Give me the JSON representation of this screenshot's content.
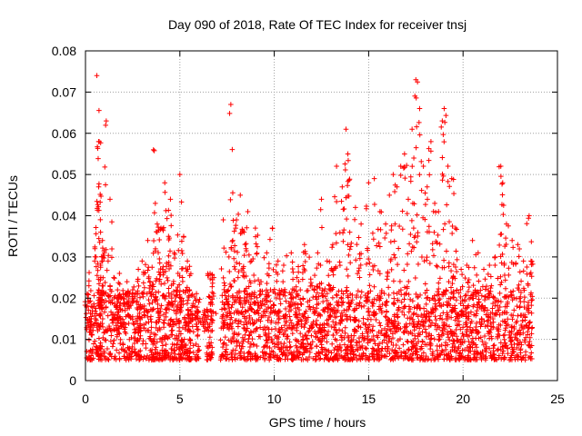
{
  "chart_data": {
    "type": "scatter",
    "title": "Day 090 of 2018, Rate Of TEC Index for receiver tnsj",
    "xlabel": "GPS time / hours",
    "ylabel": "ROTI / TECUs",
    "xlim": [
      0,
      25
    ],
    "ylim": [
      0,
      0.08
    ],
    "xticks": [
      0,
      5,
      10,
      15,
      20,
      25
    ],
    "xtick_labels": [
      "0",
      "5",
      "10",
      "15",
      "20",
      "25"
    ],
    "yticks": [
      0,
      0.01,
      0.02,
      0.03,
      0.04,
      0.05,
      0.06,
      0.07,
      0.08
    ],
    "ytick_labels": [
      "0",
      "0.01",
      "0.02",
      "0.03",
      "0.04",
      "0.05",
      "0.06",
      "0.07",
      "0.08"
    ],
    "grid": true,
    "marker": "+",
    "color": "#ff0000",
    "series": [
      {
        "name": "ROTI",
        "x": [
          0.1,
          0.3,
          0.5,
          0.6,
          0.7,
          0.7,
          0.8,
          0.8,
          0.9,
          1.0,
          1.1,
          1.2,
          1.3,
          1.5,
          1.7,
          1.8,
          2.0,
          2.2,
          2.5,
          2.8,
          3.0,
          3.3,
          3.6,
          3.7,
          3.8,
          4.0,
          4.2,
          4.4,
          4.5,
          4.7,
          4.9,
          5.0,
          5.2,
          5.4,
          5.5,
          5.8,
          6.0,
          6.3,
          6.6,
          6.8,
          7.3,
          7.6,
          7.7,
          7.8,
          8.0,
          8.2,
          8.4,
          8.5,
          8.6,
          8.8,
          9.0,
          9.3,
          9.6,
          9.9,
          10.2,
          10.5,
          10.9,
          11.2,
          11.6,
          12.0,
          12.3,
          12.5,
          12.8,
          13.1,
          13.3,
          13.6,
          13.8,
          13.9,
          14.0,
          14.3,
          14.6,
          15.0,
          15.3,
          15.6,
          15.9,
          16.1,
          16.3,
          16.5,
          16.7,
          16.9,
          17.1,
          17.3,
          17.5,
          17.7,
          17.9,
          18.1,
          18.3,
          18.5,
          18.7,
          18.9,
          19.0,
          19.2,
          19.4,
          19.6,
          19.9,
          20.2,
          20.5,
          20.8,
          21.1,
          21.4,
          21.7,
          22.0,
          22.1,
          22.3,
          22.6,
          22.9,
          23.2,
          23.5,
          23.6
        ],
        "y": [
          0.021,
          0.018,
          0.032,
          0.074,
          0.058,
          0.047,
          0.036,
          0.028,
          0.034,
          0.031,
          0.063,
          0.029,
          0.044,
          0.025,
          0.022,
          0.026,
          0.021,
          0.024,
          0.022,
          0.027,
          0.029,
          0.034,
          0.056,
          0.043,
          0.038,
          0.037,
          0.048,
          0.035,
          0.044,
          0.031,
          0.026,
          0.05,
          0.035,
          0.029,
          0.022,
          0.018,
          0.019,
          0.017,
          0.026,
          0.025,
          0.039,
          0.03,
          0.067,
          0.034,
          0.039,
          0.045,
          0.036,
          0.032,
          0.041,
          0.029,
          0.037,
          0.024,
          0.031,
          0.037,
          0.029,
          0.028,
          0.031,
          0.025,
          0.033,
          0.023,
          0.031,
          0.044,
          0.029,
          0.033,
          0.052,
          0.047,
          0.061,
          0.055,
          0.036,
          0.042,
          0.038,
          0.048,
          0.049,
          0.041,
          0.038,
          0.045,
          0.05,
          0.047,
          0.052,
          0.055,
          0.044,
          0.061,
          0.073,
          0.066,
          0.052,
          0.047,
          0.058,
          0.043,
          0.041,
          0.063,
          0.066,
          0.052,
          0.049,
          0.037,
          0.027,
          0.028,
          0.034,
          0.031,
          0.027,
          0.028,
          0.03,
          0.052,
          0.048,
          0.038,
          0.034,
          0.033,
          0.029,
          0.04,
          0.029
        ],
        "baseline_band": [
          0.005,
          0.022
        ]
      }
    ]
  }
}
